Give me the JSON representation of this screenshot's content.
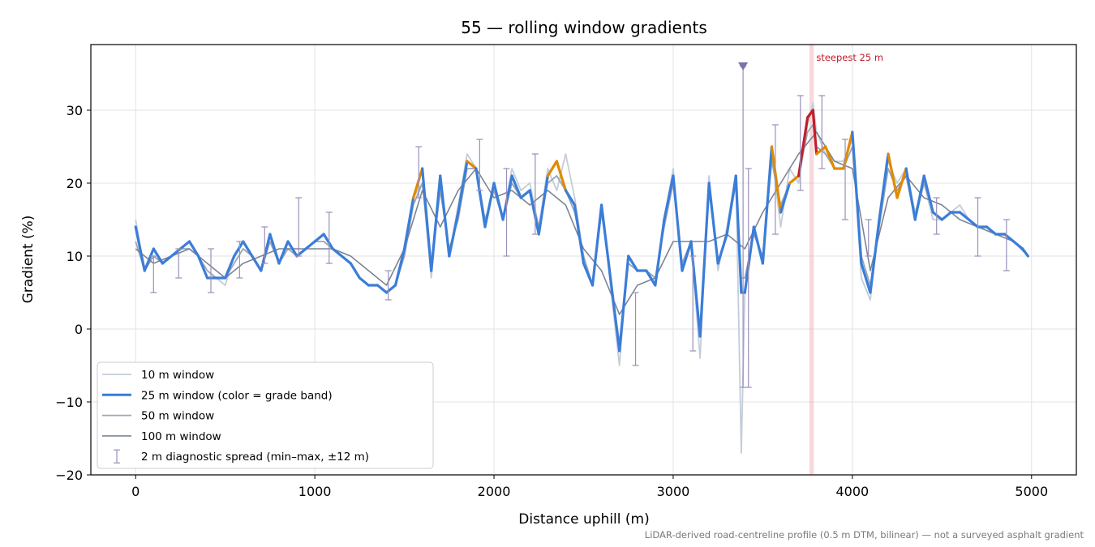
{
  "chart_data": {
    "type": "line",
    "title": "55 — rolling window gradients",
    "xlabel": "Distance uphill (m)",
    "ylabel": "Gradient (%)",
    "xlim": [
      -250,
      5250
    ],
    "ylim": [
      -20,
      39
    ],
    "x_ticks": [
      0,
      1000,
      2000,
      3000,
      4000,
      5000
    ],
    "y_ticks": [
      -20,
      -10,
      0,
      10,
      20,
      30
    ],
    "grid": true,
    "legend_position": "lower-left",
    "footnote": "LiDAR-derived road-centreline profile (0.5 m DTM, bilinear) — not a surveyed asphalt gradient",
    "steepest_label": "steepest 25 m",
    "steepest_segment": [
      3760,
      3785
    ],
    "summit_marker_x": 3390,
    "grade_band_colors": {
      "below_20": "#3b7dd8",
      "20_to_25": "#e08a00",
      "above_25": "#c01f2a"
    },
    "series": [
      {
        "name": "10 m window",
        "color": "#c3cdd9",
        "x": [
          0,
          50,
          100,
          150,
          200,
          250,
          300,
          350,
          400,
          450,
          500,
          550,
          600,
          650,
          700,
          750,
          800,
          850,
          900,
          950,
          1000,
          1050,
          1100,
          1150,
          1200,
          1250,
          1300,
          1350,
          1400,
          1450,
          1500,
          1550,
          1600,
          1650,
          1700,
          1750,
          1800,
          1850,
          1900,
          1950,
          2000,
          2050,
          2100,
          2150,
          2200,
          2250,
          2300,
          2350,
          2400,
          2450,
          2500,
          2550,
          2600,
          2650,
          2700,
          2750,
          2800,
          2850,
          2900,
          2950,
          3000,
          3050,
          3100,
          3150,
          3200,
          3250,
          3300,
          3350,
          3380,
          3400,
          3450,
          3500,
          3550,
          3600,
          3650,
          3700,
          3750,
          3780,
          3800,
          3850,
          3900,
          3950,
          4000,
          4050,
          4100,
          4150,
          4200,
          4250,
          4300,
          4350,
          4400,
          4450,
          4500,
          4550,
          4600,
          4650,
          4700,
          4750,
          4800,
          4850,
          4900,
          4950,
          4980
        ],
        "values": [
          15,
          8,
          11,
          9,
          10,
          11,
          12,
          10,
          7,
          7,
          6,
          10,
          12,
          10,
          8,
          13,
          9,
          12,
          10,
          11,
          12,
          13,
          11,
          10,
          9,
          7,
          6,
          6,
          5,
          6,
          11,
          18,
          20,
          7,
          20,
          10,
          17,
          24,
          22,
          14,
          20,
          15,
          22,
          19,
          20,
          14,
          22,
          19,
          24,
          18,
          10,
          6,
          17,
          6,
          -5,
          10,
          8,
          8,
          7,
          15,
          22,
          8,
          12,
          -4,
          21,
          8,
          14,
          21,
          -17,
          5,
          14,
          9,
          24,
          14,
          22,
          20,
          28,
          31,
          27,
          24,
          23,
          23,
          26,
          7,
          4,
          15,
          23,
          20,
          22,
          16,
          20,
          15,
          15,
          16,
          17,
          15,
          14,
          14,
          13,
          13,
          12,
          11,
          10
        ]
      },
      {
        "name": "25 m window (color = grade band)",
        "color": "#3b7dd8",
        "x": [
          0,
          50,
          100,
          150,
          200,
          250,
          300,
          350,
          400,
          450,
          500,
          550,
          600,
          650,
          700,
          750,
          800,
          850,
          900,
          950,
          1000,
          1050,
          1100,
          1150,
          1200,
          1250,
          1300,
          1350,
          1400,
          1450,
          1500,
          1550,
          1600,
          1650,
          1700,
          1750,
          1800,
          1850,
          1900,
          1950,
          2000,
          2050,
          2100,
          2150,
          2200,
          2250,
          2300,
          2350,
          2400,
          2450,
          2500,
          2550,
          2600,
          2650,
          2700,
          2750,
          2800,
          2850,
          2900,
          2950,
          3000,
          3050,
          3100,
          3150,
          3200,
          3250,
          3300,
          3350,
          3380,
          3400,
          3450,
          3500,
          3550,
          3600,
          3650,
          3700,
          3750,
          3780,
          3800,
          3850,
          3900,
          3950,
          4000,
          4050,
          4100,
          4150,
          4200,
          4250,
          4300,
          4350,
          4400,
          4450,
          4500,
          4550,
          4600,
          4650,
          4700,
          4750,
          4800,
          4850,
          4900,
          4950,
          4980
        ],
        "values": [
          14,
          8,
          11,
          9,
          10,
          11,
          12,
          10,
          7,
          7,
          7,
          10,
          12,
          10,
          8,
          13,
          9,
          12,
          10,
          11,
          12,
          13,
          11,
          10,
          9,
          7,
          6,
          6,
          5,
          6,
          11,
          18,
          22,
          8,
          21,
          10,
          16,
          23,
          22,
          14,
          20,
          15,
          21,
          18,
          19,
          13,
          21,
          23,
          19,
          17,
          9,
          6,
          17,
          7,
          -3,
          10,
          8,
          8,
          6,
          15,
          21,
          8,
          12,
          -1,
          20,
          9,
          13,
          21,
          5,
          5,
          14,
          9,
          25,
          16,
          20,
          21,
          29,
          30,
          24,
          25,
          22,
          22,
          27,
          9,
          5,
          15,
          24,
          18,
          22,
          15,
          21,
          16,
          15,
          16,
          16,
          15,
          14,
          14,
          13,
          13,
          12,
          11,
          10
        ]
      },
      {
        "name": "50 m window",
        "color": "#9aa7b7",
        "x": [
          0,
          50,
          100,
          150,
          200,
          250,
          300,
          350,
          400,
          450,
          500,
          550,
          600,
          650,
          700,
          750,
          800,
          850,
          900,
          950,
          1000,
          1050,
          1100,
          1150,
          1200,
          1250,
          1300,
          1350,
          1400,
          1450,
          1500,
          1550,
          1600,
          1650,
          1700,
          1750,
          1800,
          1850,
          1900,
          1950,
          2000,
          2050,
          2100,
          2150,
          2200,
          2250,
          2300,
          2350,
          2400,
          2450,
          2500,
          2550,
          2600,
          2650,
          2700,
          2750,
          2800,
          2850,
          2900,
          2950,
          3000,
          3050,
          3100,
          3150,
          3200,
          3250,
          3300,
          3350,
          3380,
          3400,
          3450,
          3500,
          3550,
          3600,
          3650,
          3700,
          3750,
          3780,
          3800,
          3850,
          3900,
          3950,
          4000,
          4050,
          4100,
          4150,
          4200,
          4250,
          4300,
          4350,
          4400,
          4450,
          4500,
          4550,
          4600,
          4650,
          4700,
          4750,
          4800,
          4850,
          4900,
          4950,
          4980
        ],
        "values": [
          12,
          8,
          10,
          9,
          10,
          11,
          11,
          10,
          8,
          7,
          7,
          9,
          11,
          10,
          8,
          12,
          9,
          11,
          10,
          11,
          12,
          12,
          11,
          10,
          9,
          7,
          6,
          6,
          5,
          6,
          10,
          17,
          20,
          9,
          19,
          11,
          15,
          22,
          22,
          15,
          19,
          15,
          20,
          18,
          19,
          14,
          20,
          21,
          19,
          16,
          10,
          6,
          16,
          7,
          -2,
          9,
          8,
          8,
          7,
          14,
          20,
          9,
          12,
          0,
          19,
          9,
          13,
          20,
          7,
          7,
          13,
          10,
          23,
          17,
          20,
          21,
          27,
          28,
          25,
          24,
          22,
          22,
          25,
          10,
          6,
          14,
          22,
          19,
          21,
          15,
          20,
          16,
          15,
          16,
          16,
          15,
          14,
          14,
          13,
          13,
          12,
          11,
          10
        ]
      },
      {
        "name": "100 m window",
        "color": "#7a8595",
        "x": [
          0,
          100,
          200,
          300,
          400,
          500,
          600,
          700,
          800,
          900,
          1000,
          1100,
          1200,
          1300,
          1400,
          1500,
          1600,
          1700,
          1800,
          1900,
          2000,
          2100,
          2200,
          2300,
          2400,
          2500,
          2600,
          2700,
          2800,
          2900,
          3000,
          3100,
          3200,
          3300,
          3400,
          3500,
          3600,
          3700,
          3800,
          3900,
          4000,
          4100,
          4200,
          4300,
          4400,
          4500,
          4600,
          4700,
          4800,
          4900,
          4980
        ],
        "values": [
          11,
          9,
          10,
          11,
          9,
          7,
          9,
          10,
          11,
          11,
          11,
          11,
          10,
          8,
          6,
          11,
          19,
          14,
          19,
          22,
          18,
          19,
          17,
          19,
          17,
          11,
          8,
          2,
          6,
          7,
          12,
          12,
          12,
          13,
          11,
          16,
          20,
          24,
          27,
          23,
          22,
          8,
          18,
          21,
          18,
          17,
          15,
          14,
          13,
          12,
          10
        ]
      }
    ],
    "diagnostic_spread": {
      "name": "2 m diagnostic spread (min–max, ±12 m)",
      "color": "#9a90b8",
      "points": [
        {
          "x": 100,
          "min": 5,
          "max": 10
        },
        {
          "x": 240,
          "min": 7,
          "max": 11
        },
        {
          "x": 420,
          "min": 5,
          "max": 11
        },
        {
          "x": 580,
          "min": 7,
          "max": 12
        },
        {
          "x": 720,
          "min": 9,
          "max": 14
        },
        {
          "x": 910,
          "min": 10,
          "max": 18
        },
        {
          "x": 1080,
          "min": 9,
          "max": 16
        },
        {
          "x": 1410,
          "min": 4,
          "max": 8
        },
        {
          "x": 1580,
          "min": 18,
          "max": 25
        },
        {
          "x": 1920,
          "min": 19,
          "max": 26
        },
        {
          "x": 2070,
          "min": 10,
          "max": 22
        },
        {
          "x": 2230,
          "min": 13,
          "max": 24
        },
        {
          "x": 2790,
          "min": -5,
          "max": 5
        },
        {
          "x": 3110,
          "min": -3,
          "max": 10
        },
        {
          "x": 3390,
          "min": -8,
          "max": 36
        },
        {
          "x": 3420,
          "min": -8,
          "max": 22
        },
        {
          "x": 3570,
          "min": 13,
          "max": 28
        },
        {
          "x": 3710,
          "min": 19,
          "max": 32
        },
        {
          "x": 3830,
          "min": 22,
          "max": 32
        },
        {
          "x": 3960,
          "min": 15,
          "max": 26
        },
        {
          "x": 4090,
          "min": 10,
          "max": 15
        },
        {
          "x": 4470,
          "min": 13,
          "max": 18
        },
        {
          "x": 4700,
          "min": 10,
          "max": 18
        },
        {
          "x": 4860,
          "min": 8,
          "max": 15
        }
      ]
    }
  }
}
